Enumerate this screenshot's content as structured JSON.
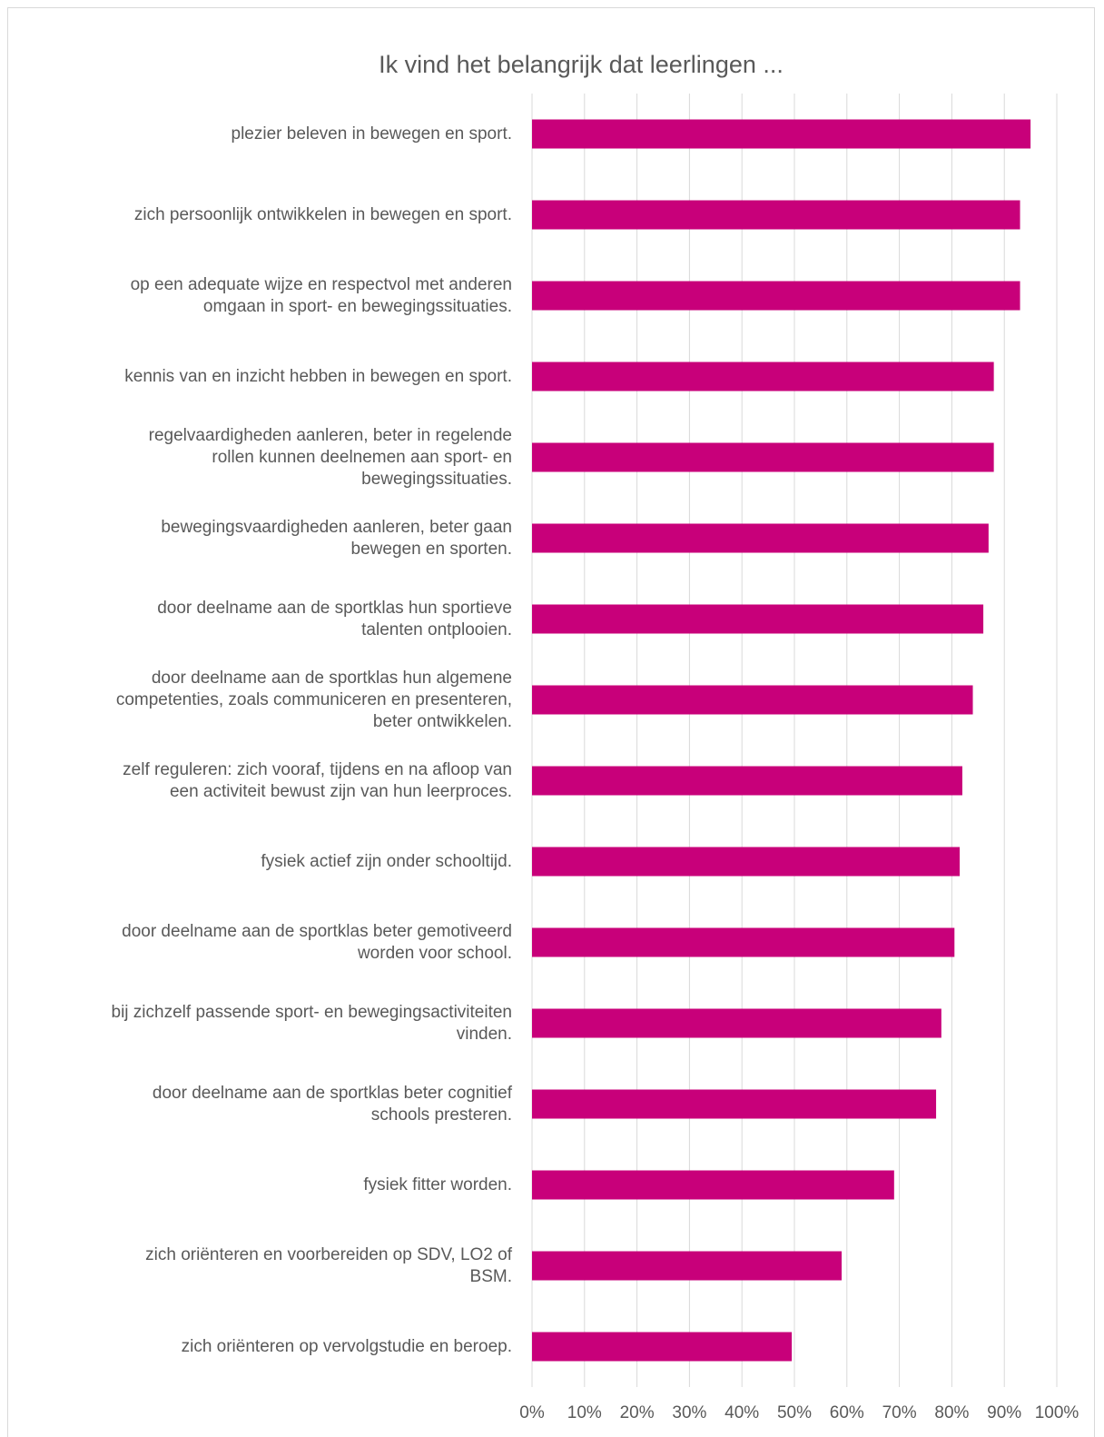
{
  "chart_data": {
    "type": "barh",
    "title": "Ik vind het belangrijk dat leerlingen ...",
    "categories": [
      "plezier beleven in bewegen en sport.",
      "zich persoonlijk ontwikkelen in bewegen en sport.",
      "op een adequate wijze en respectvol met anderen\nomgaan in sport- en bewegingssituaties.",
      "kennis van en inzicht hebben in bewegen en sport.",
      "regelvaardigheden aanleren, beter in regelende\nrollen kunnen deelnemen aan sport- en\nbewegingssituaties.",
      "bewegingsvaardigheden aanleren, beter gaan\nbewegen en sporten.",
      "door deelname aan de sportklas hun sportieve\ntalenten ontplooien.",
      "door deelname aan de sportklas hun algemene\ncompetenties, zoals communiceren en presenteren,\nbeter ontwikkelen.",
      "zelf reguleren: zich vooraf, tijdens en na afloop van\neen activiteit bewust zijn van hun leerproces.",
      "fysiek actief zijn onder schooltijd.",
      "door deelname aan de sportklas beter gemotiveerd\nworden voor school.",
      "bij zichzelf passende sport- en bewegingsactiviteiten\nvinden.",
      "door deelname aan de sportklas beter cognitief\nschools presteren.",
      "fysiek fitter worden.",
      "zich oriënteren en voorbereiden op SDV, LO2 of\nBSM.",
      "zich oriënteren op vervolgstudie en beroep."
    ],
    "values": [
      95,
      93,
      93,
      88,
      88,
      87,
      86,
      84,
      82,
      81.5,
      80.5,
      78,
      77,
      69,
      59,
      49.5
    ],
    "color": "#c8007a",
    "xlim": [
      0,
      100
    ],
    "xticks": [
      {
        "value": 0,
        "label": "0%"
      },
      {
        "value": 10,
        "label": "10%"
      },
      {
        "value": 20,
        "label": "20%"
      },
      {
        "value": 30,
        "label": "30%"
      },
      {
        "value": 40,
        "label": "40%"
      },
      {
        "value": 50,
        "label": "50%"
      },
      {
        "value": 60,
        "label": "60%"
      },
      {
        "value": 70,
        "label": "70%"
      },
      {
        "value": 80,
        "label": "80%"
      },
      {
        "value": 90,
        "label": "90%"
      },
      {
        "value": 100,
        "label": "100%"
      }
    ],
    "grid": true
  }
}
